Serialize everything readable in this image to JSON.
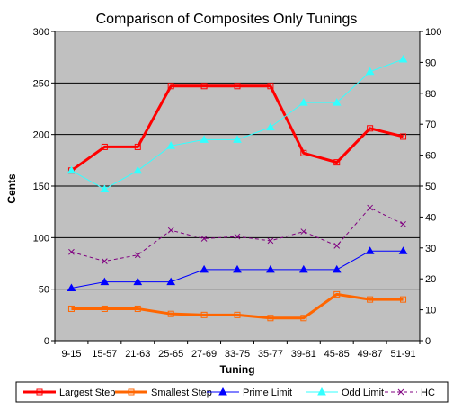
{
  "chart_data": {
    "type": "line",
    "title": "Comparison of Composites Only Tunings",
    "xlabel": "Tuning",
    "ylabel": "Cents",
    "ylim": [
      0,
      300
    ],
    "y2lim": [
      0,
      100
    ],
    "yticks": [
      "0",
      "50",
      "100",
      "150",
      "200",
      "250",
      "300"
    ],
    "y2ticks": [
      "0",
      "10",
      "20",
      "30",
      "40",
      "50",
      "60",
      "70",
      "80",
      "90",
      "100"
    ],
    "grid": "horizontal",
    "legend": "bottom",
    "background": "#c0c0c0",
    "categories": [
      "9-15",
      "15-57",
      "21-63",
      "25-65",
      "27-69",
      "33-75",
      "35-77",
      "39-81",
      "45-85",
      "49-87",
      "51-91"
    ],
    "series": [
      {
        "name": "Largest Step",
        "axis": "left",
        "color": "#ff0000",
        "marker": "square-open",
        "width": 3,
        "dash": "",
        "values": [
          165,
          188,
          188,
          247,
          247,
          247,
          247,
          182,
          173,
          206,
          198
        ]
      },
      {
        "name": "Smallest Step",
        "axis": "left",
        "color": "#ff6600",
        "marker": "square-open",
        "width": 3,
        "dash": "",
        "values": [
          31,
          31,
          31,
          26,
          25,
          25,
          22,
          22,
          45,
          40,
          40
        ]
      },
      {
        "name": "Prime Limit",
        "axis": "right",
        "color": "#0000ff",
        "marker": "triangle",
        "width": 1,
        "dash": "",
        "values": [
          17,
          19,
          19,
          19,
          23,
          23,
          23,
          23,
          23,
          29,
          29
        ]
      },
      {
        "name": "Odd Limit",
        "axis": "right",
        "color": "#33ffff",
        "marker": "triangle",
        "width": 1,
        "dash": "",
        "values": [
          55,
          49,
          55,
          63,
          65,
          65,
          69,
          77,
          77,
          87,
          91
        ]
      },
      {
        "name": "HC",
        "axis": "right",
        "color": "#800080",
        "marker": "x",
        "width": 1,
        "dash": "4,3",
        "values": [
          28.7,
          25.7,
          27.7,
          35.7,
          33,
          33.7,
          32.3,
          35.3,
          30.7,
          43,
          37.7
        ]
      }
    ]
  }
}
